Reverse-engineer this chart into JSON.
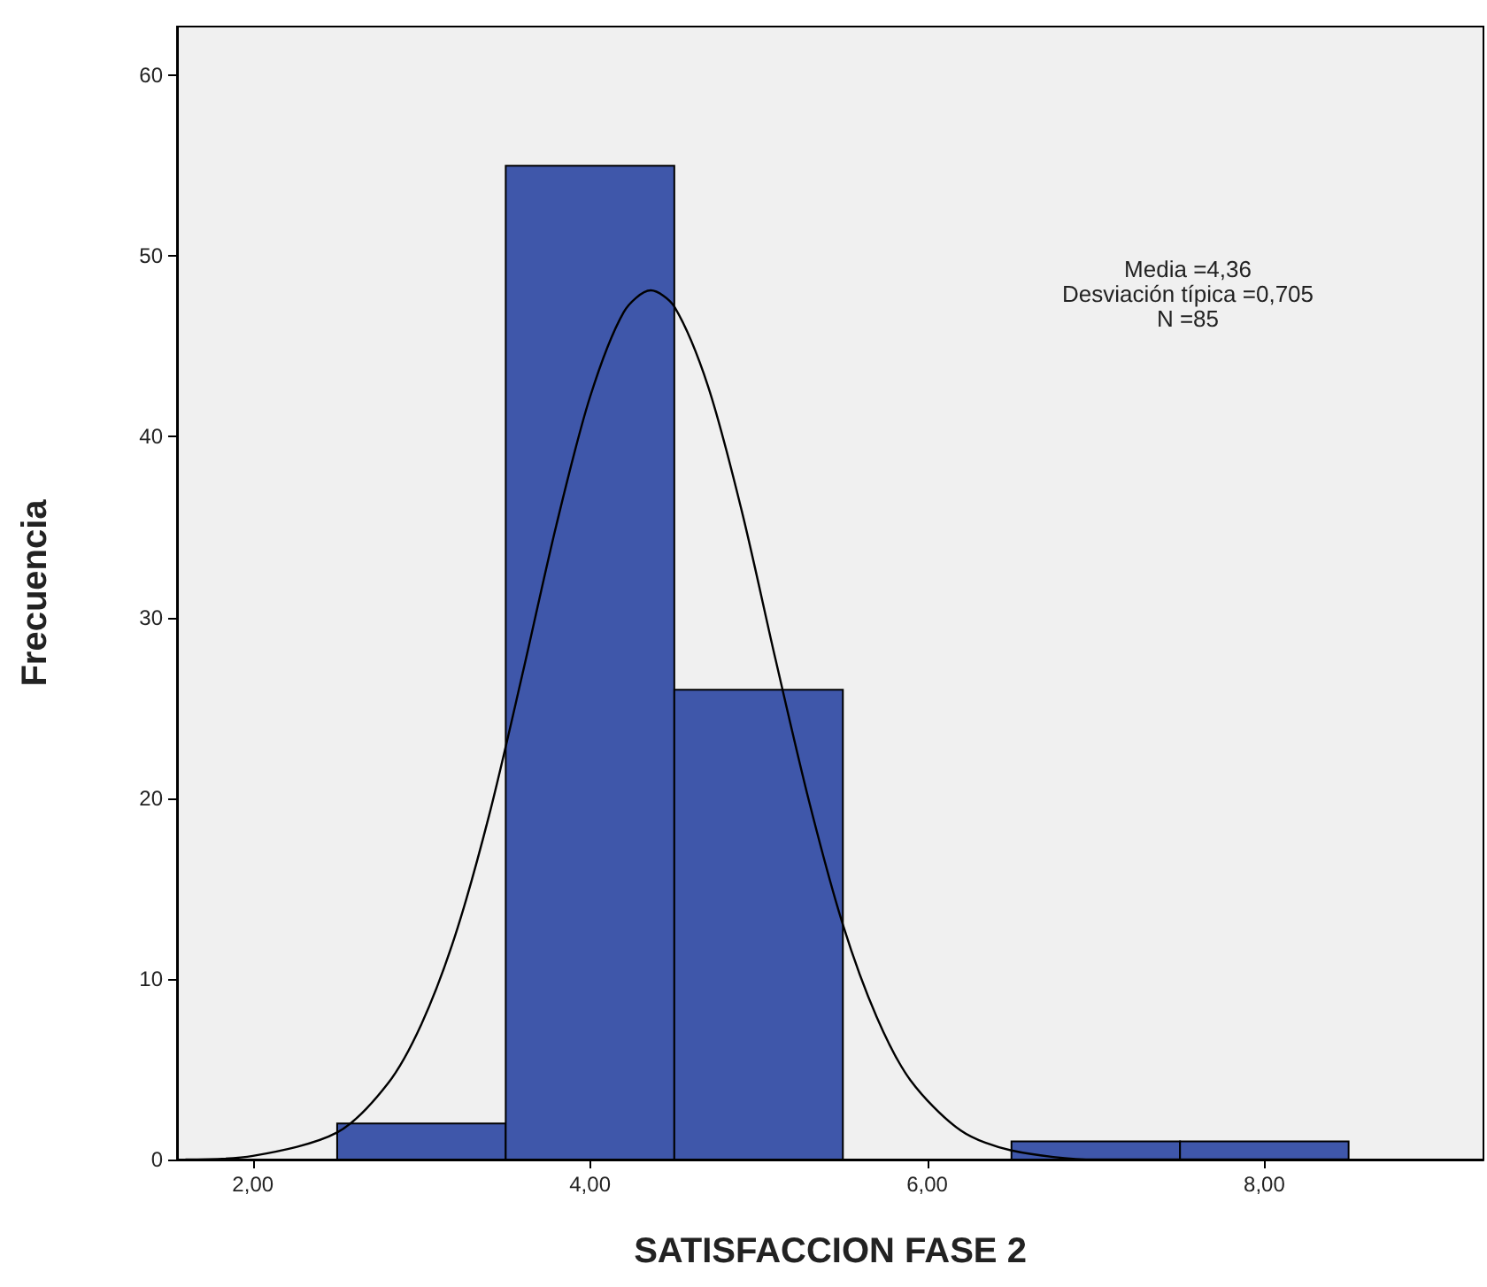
{
  "chart_data": {
    "type": "histogram",
    "xlabel": "SATISFACCION FASE 2",
    "ylabel": "Frecuencia",
    "bins": [
      2.5,
      3.5,
      4.5,
      5.5,
      6.5,
      7.5,
      8.5
    ],
    "values": [
      2,
      55,
      26,
      0,
      1,
      1
    ],
    "color": "#3f57aa",
    "series": [
      {
        "type": "line",
        "color": "#000000",
        "x": [
          1.6,
          2.0,
          2.5,
          2.8,
          3.0,
          3.2,
          3.4,
          3.6,
          3.8,
          4.0,
          4.2,
          4.36,
          4.5,
          4.7,
          4.9,
          5.1,
          5.3,
          5.5,
          5.7,
          5.9,
          6.2,
          6.5,
          7.0,
          8.5
        ],
        "values": [
          0,
          0.2,
          1.5,
          4.2,
          7.5,
          12.4,
          19.0,
          26.9,
          35.1,
          42.2,
          46.9,
          48.1,
          47.2,
          42.8,
          35.9,
          27.7,
          19.8,
          13.0,
          7.9,
          4.4,
          1.6,
          0.5,
          0,
          0
        ]
      }
    ],
    "xlim": [
      1.55,
      9.3
    ],
    "ylim": [
      0,
      62.7
    ],
    "xticks": [
      {
        "value": 2,
        "label": "2,00"
      },
      {
        "value": 4,
        "label": "4,00"
      },
      {
        "value": 6,
        "label": "6,00"
      },
      {
        "value": 8,
        "label": "8,00"
      }
    ],
    "yticks": [
      0,
      10,
      20,
      30,
      40,
      50,
      60
    ],
    "annotations": [
      "Media =4,36",
      "Desviación típica =0,705",
      "N =85"
    ],
    "grid": false
  }
}
